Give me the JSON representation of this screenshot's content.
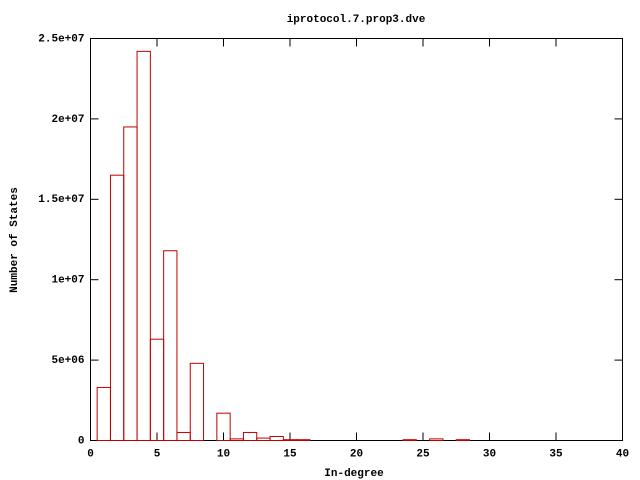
{
  "chart_data": {
    "type": "bar",
    "title": "iprotocol.7.prop3.dve",
    "x_label": "In-degree",
    "y_label": "Number of States",
    "x": [
      1,
      2,
      3,
      4,
      5,
      6,
      7,
      8,
      10,
      11,
      12,
      13,
      14,
      15,
      16,
      24,
      26,
      28
    ],
    "values": [
      3300000,
      16500000,
      19500000,
      24200000,
      6300000,
      11800000,
      500000,
      4800000,
      1700000,
      100000,
      500000,
      150000,
      250000,
      50000,
      50000,
      50000,
      100000,
      50000
    ],
    "color": "#c00000",
    "xlim": [
      0,
      40
    ],
    "xticks": [
      0,
      5,
      10,
      15,
      20,
      25,
      30,
      35,
      40
    ],
    "ylim": [
      0,
      25000000
    ],
    "yticks": [
      0,
      {
        "value": 5000000,
        "label": "5e+06"
      },
      {
        "value": 10000000,
        "label": "1e+07"
      },
      {
        "value": 15000000,
        "label": "1.5e+07"
      },
      {
        "value": 20000000,
        "label": "2e+07"
      },
      {
        "value": 25000000,
        "label": "2.5e+07"
      }
    ]
  }
}
